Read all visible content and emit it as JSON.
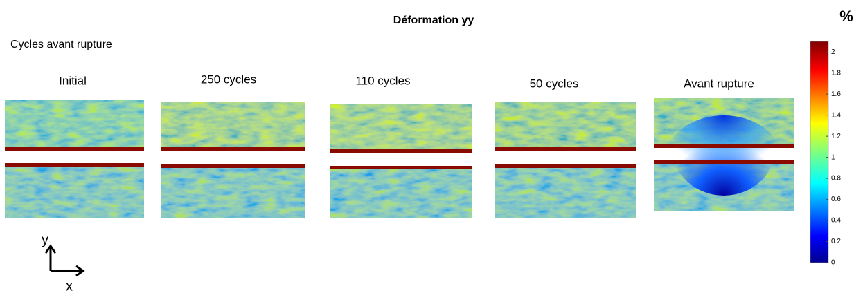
{
  "title": "Déformation yy",
  "subtitle": "Cycles avant rupture",
  "unit": "%",
  "panels": [
    "Initial",
    "250 cycles",
    "110 cycles",
    "50 cycles",
    "Avant rupture"
  ],
  "colorbar": {
    "lim": [
      0,
      2.1
    ],
    "ticks": [
      0,
      0.2,
      0.4,
      0.6,
      0.8,
      1,
      1.2,
      1.4,
      1.6,
      1.8,
      2
    ]
  },
  "axes": {
    "y": "y",
    "x": "x"
  }
}
